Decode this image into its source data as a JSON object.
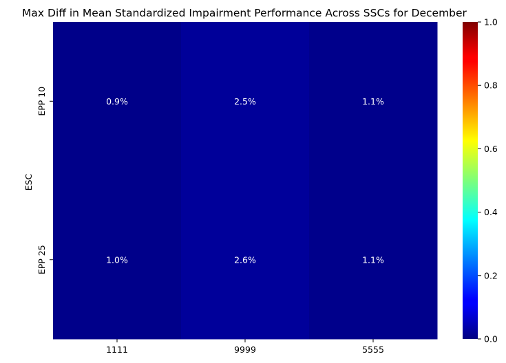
{
  "chart_data": {
    "type": "heatmap",
    "title": "Max Diff in Mean Standardized Impairment Performance Across SSCs for December",
    "xlabel": "",
    "ylabel": "ESC",
    "x_categories": [
      "1111",
      "9999",
      "5555"
    ],
    "y_categories": [
      "EPP 10",
      "EPP 25"
    ],
    "values": [
      [
        0.009,
        0.025,
        0.011
      ],
      [
        0.01,
        0.026,
        0.011
      ]
    ],
    "cell_labels": [
      [
        "0.9%",
        "2.5%",
        "1.1%"
      ],
      [
        "1.0%",
        "2.6%",
        "1.1%"
      ]
    ],
    "colormap": "jet",
    "colorbar": {
      "range": [
        0,
        1
      ],
      "ticks": [
        0.0,
        0.2,
        0.4,
        0.6,
        0.8,
        1.0
      ],
      "tick_labels": [
        "0.0",
        "0.2",
        "0.4",
        "0.6",
        "0.8",
        "1.0"
      ]
    },
    "annotation_color": "#ffffff"
  }
}
